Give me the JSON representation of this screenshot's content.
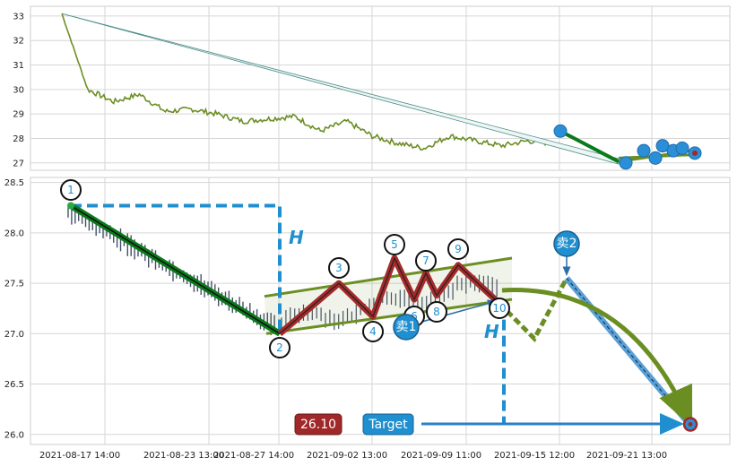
{
  "chart_data": [
    {
      "type": "line",
      "title": "",
      "ylim": [
        26.7,
        33.4
      ],
      "y_ticks": [
        "27",
        "28",
        "29",
        "30",
        "31",
        "32",
        "33"
      ],
      "grid": true,
      "series": [
        {
          "color": "#6b8e23",
          "x": [
            "2021-08-17 14:00",
            "2021-08-18",
            "2021-08-19",
            "2021-08-20",
            "2021-08-23",
            "2021-08-24",
            "2021-08-25",
            "2021-08-26",
            "2021-08-27",
            "2021-08-30",
            "2021-08-31",
            "2021-09-01",
            "2021-09-02",
            "2021-09-03",
            "2021-09-06",
            "2021-09-07",
            "2021-09-08",
            "2021-09-09",
            "2021-09-10",
            "2021-09-13"
          ],
          "y": [
            33.1,
            30.0,
            29.5,
            29.8,
            29.1,
            29.2,
            29.0,
            28.7,
            28.8,
            28.9,
            28.3,
            28.7,
            28.1,
            27.8,
            27.6,
            28.1,
            27.9,
            27.7,
            27.9,
            27.8
          ]
        }
      ],
      "markers": [
        28.3,
        27.0,
        27.5,
        27.2,
        27.7,
        27.5,
        27.6,
        27.4
      ],
      "trend": {
        "from": 33.1,
        "to": 27.1
      }
    },
    {
      "type": "line",
      "title": "",
      "ylim": [
        25.9,
        28.55
      ],
      "y_ticks": [
        "26.0",
        "26.5",
        "27.0",
        "27.5",
        "28.0",
        "28.5"
      ],
      "x_ticks": [
        "2021-08-17 14:00",
        "2021-08-23 13:00",
        "2021-08-27 14:00",
        "2021-09-02 13:00",
        "2021-09-09 11:00",
        "2021-09-15 12:00",
        "2021-09-21 13:00"
      ],
      "grid": true,
      "pattern_points": [
        {
          "label": "1",
          "y": 28.27
        },
        {
          "label": "2",
          "y": 27.0
        },
        {
          "label": "3",
          "y": 27.5
        },
        {
          "label": "4",
          "y": 27.17
        },
        {
          "label": "5",
          "y": 27.75
        },
        {
          "label": "6",
          "y": 27.34
        },
        {
          "label": "7",
          "y": 27.6
        },
        {
          "label": "8",
          "y": 27.38
        },
        {
          "label": "9",
          "y": 27.68
        },
        {
          "label": "10",
          "y": 27.3
        }
      ],
      "projection": [
        27.3,
        26.95,
        27.55,
        26.1
      ],
      "h_label": "H",
      "sell_labels": [
        "卖1",
        "卖2"
      ],
      "target_value": "26.10",
      "target_label": "Target",
      "colors": {
        "line": "#6b8e23",
        "accent": "#1f8fcf",
        "pattern": "#a52a2a",
        "badge": "#a02828",
        "down": "#0a7a1a"
      }
    }
  ]
}
